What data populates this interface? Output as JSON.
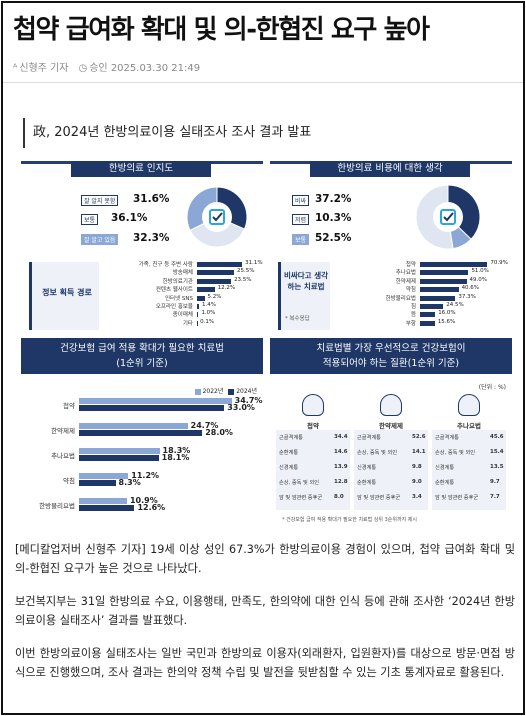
{
  "article": {
    "title": "첩약 급여화 확대 및 의-한협진 요구 높아",
    "author": "신형주 기자",
    "approved": "승인 2025.03.30 21:49"
  },
  "colors": {
    "navy": "#1f3766",
    "light_blue": "#8aa7d6",
    "accent": "#2aa7d8"
  },
  "infographic": {
    "heading": "政, 2024년 한방의료이용 실태조사 조사 결과 발표",
    "p1": {
      "title": "한방의료 인지도",
      "items": [
        {
          "label": "잘 알지 못함",
          "value": "31.6%"
        },
        {
          "label": "보통",
          "value": "36.1%"
        },
        {
          "label": "잘 알고 있음",
          "value": "32.3%"
        }
      ],
      "source_label": "정보 획득 경로",
      "rows": [
        {
          "label": "가족, 친구 등 주변 사람",
          "value": 31.1,
          "text": "31.1%"
        },
        {
          "label": "방송매체",
          "value": 25.5,
          "text": "25.5%"
        },
        {
          "label": "한방의료기관",
          "value": 23.5,
          "text": "23.5%"
        },
        {
          "label": "컨텐츠 웹사이트",
          "value": 12.2,
          "text": "12.2%"
        },
        {
          "label": "인터넷 SNS",
          "value": 5.2,
          "text": "5.2%"
        },
        {
          "label": "오프라인 홍보물",
          "value": 1.4,
          "text": "1.4%"
        },
        {
          "label": "종이매체",
          "value": 1.0,
          "text": "1.0%"
        },
        {
          "label": "기타",
          "value": 0.1,
          "text": "0.1%"
        }
      ]
    },
    "p2": {
      "title": "한방의료 비용에 대한 생각",
      "items": [
        {
          "label": "비싸",
          "value": "37.2%"
        },
        {
          "label": "저렴",
          "value": "10.3%"
        },
        {
          "label": "보통",
          "value": "52.5%"
        }
      ],
      "source_label": "비싸다고 생각하는 치료법",
      "note": "* 복수응답",
      "rows": [
        {
          "label": "첩약",
          "value": 70.9,
          "text": "70.9%"
        },
        {
          "label": "추나요법",
          "value": 51.0,
          "text": "51.0%"
        },
        {
          "label": "한약제제",
          "value": 49.0,
          "text": "49.0%"
        },
        {
          "label": "약침",
          "value": 40.6,
          "text": "40.6%"
        },
        {
          "label": "한방물리요법",
          "value": 37.3,
          "text": "37.3%"
        },
        {
          "label": "침",
          "value": 24.5,
          "text": "24.5%"
        },
        {
          "label": "뜸",
          "value": 16.0,
          "text": "16.0%"
        },
        {
          "label": "부항",
          "value": 15.6,
          "text": "15.6%"
        }
      ]
    },
    "p3": {
      "title_l1": "건강보험 급여 적용 확대가 필요한 치료법",
      "title_l2": "(1순위 기준)",
      "legend": [
        "2022년",
        "2024년"
      ],
      "rows": [
        {
          "label": "첩약",
          "v2022": 34.7,
          "v2024": 33.0,
          "t2022": "34.7%",
          "t2024": "33.0%"
        },
        {
          "label": "한약제제",
          "v2022": 24.7,
          "v2024": 28.0,
          "t2022": "24.7%",
          "t2024": "28.0%"
        },
        {
          "label": "추나요법",
          "v2022": 18.3,
          "v2024": 18.1,
          "t2022": "18.3%",
          "t2024": "18.1%"
        },
        {
          "label": "약침",
          "v2022": 11.2,
          "v2024": 8.3,
          "t2022": "11.2%",
          "t2024": "8.3%"
        },
        {
          "label": "한방물리요법",
          "v2022": 10.9,
          "v2024": 12.6,
          "t2022": "10.9%",
          "t2024": "12.6%"
        }
      ]
    },
    "p4": {
      "title_l1": "치료법별 가장 우선적으로 건강보험이",
      "title_l2": "적용되어야 하는 질환(1순위 기준)",
      "unit": "(단위 : %)",
      "cols": [
        {
          "name": "첩약",
          "rows": [
            [
              "근골격계통",
              "34.4"
            ],
            [
              "순환계통",
              "14.6"
            ],
            [
              "신경계통",
              "13.9"
            ],
            [
              "손상, 중독 및 외인",
              "12.8"
            ],
            [
              "암 및 암관련 증후군",
              "8.0"
            ]
          ]
        },
        {
          "name": "한약제제",
          "rows": [
            [
              "근골격계통",
              "52.6"
            ],
            [
              "손상, 중독 및 외인",
              "14.1"
            ],
            [
              "신경계통",
              "9.8"
            ],
            [
              "순환계통",
              "9.0"
            ],
            [
              "암 및 암관련 증후군",
              "3.4"
            ]
          ]
        },
        {
          "name": "추나요법",
          "rows": [
            [
              "근골격계통",
              "45.6"
            ],
            [
              "손상, 중독 및 외인",
              "15.4"
            ],
            [
              "신경계통",
              "13.5"
            ],
            [
              "순환계통",
              "9.7"
            ],
            [
              "암 및 암관련 증후군",
              "7.7"
            ]
          ]
        }
      ],
      "footnote": "* 건강보험 급여 적용 확대가 필요한 치료법 상위 3순위까지 제시"
    }
  },
  "body": [
    "[메디칼업저버 신형주 기자] 19세 이상 성인 67.3%가 한방의료이용 경험이 있으며, 첩약 급여화 확대 및 의-한협진 요구가 높은 것으로 나타났다.",
    "보건복지부는 31일 한방의료 수요, 이용행태, 만족도, 한의약에 대한 인식 등에 관해 조사한 ‘2024년 한방의료이용 실태조사’ 결과를 발표했다.",
    "이번 한방의료이용 실태조사는 일반 국민과 한방의료 이용자(외래환자, 입원환자)를 대상으로 방문·면접 방식으로 진행했으며, 조사 결과는 한의약 정책 수립 및 발전을 뒷받침할 수 있는 기초 통계자료로 활용된다."
  ]
}
